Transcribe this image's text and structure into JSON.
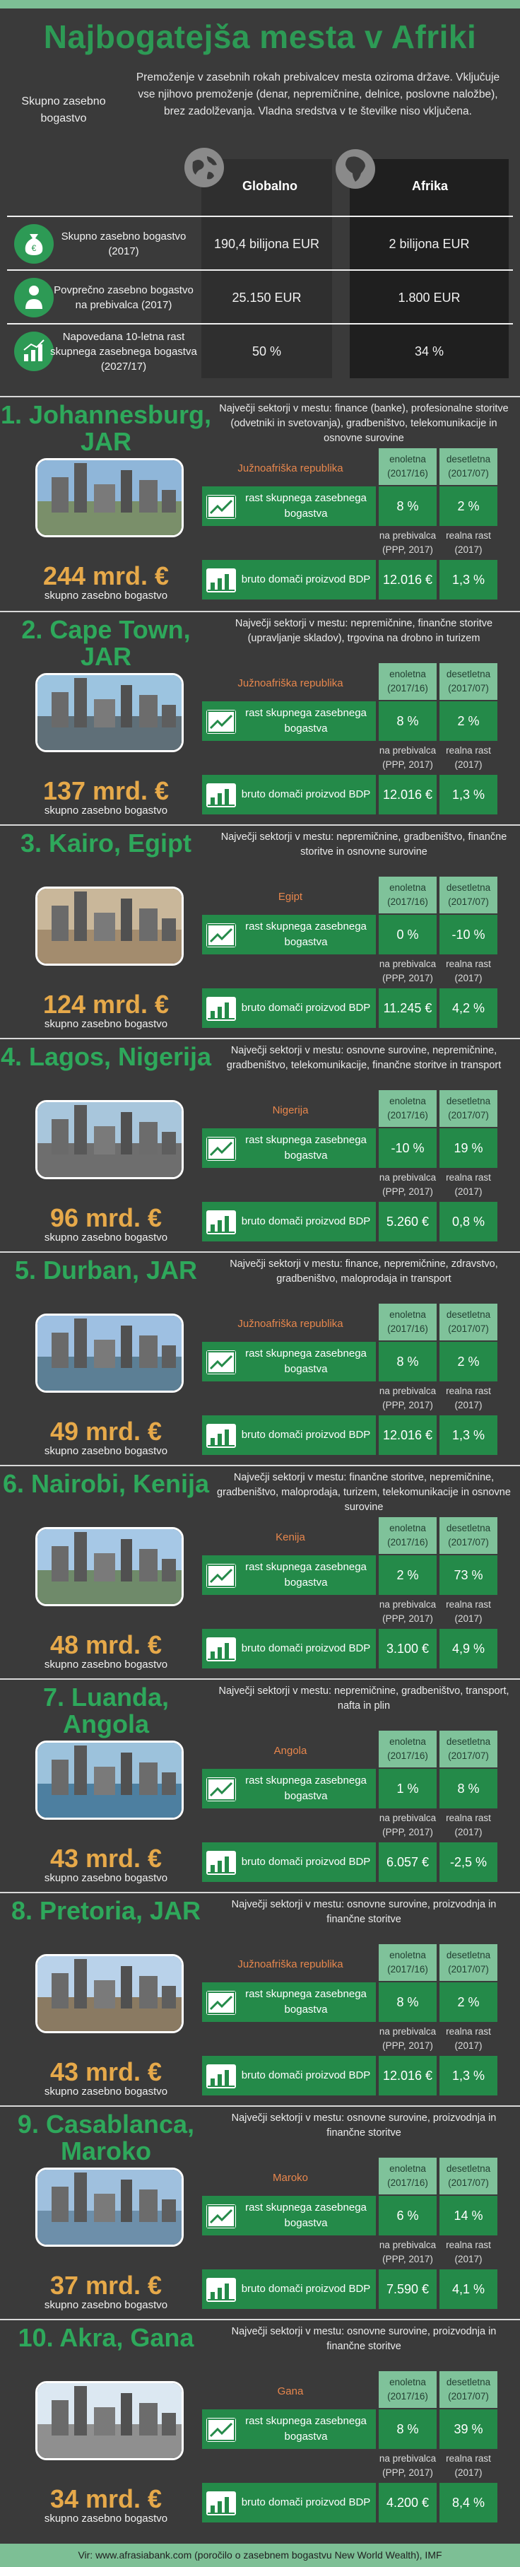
{
  "title": "Najbogatejša mesta v Afriki",
  "intro": {
    "left_label": "Skupno zasebno bogastvo",
    "text": "Premoženje v zasebnih rokah prebivalcev mesta oziroma države. Vključuje vse njihovo premoženje (denar, nepremičnine, delnice, poslovne naložbe), brez zadolževanja. Vladna sredstva v te številke niso vključena."
  },
  "summary": {
    "col_global": "Globalno",
    "col_africa": "Afrika",
    "rows": [
      {
        "label": "Skupno zasebno bogastvo (2017)",
        "global": "190,4 bilijona EUR",
        "africa": "2 bilijona EUR"
      },
      {
        "label": "Povprečno zasebno bogastvo na prebivalca (2017)",
        "global": "25.150 EUR",
        "africa": "1.800 EUR"
      },
      {
        "label": "Napovedana 10-letna rast skupnega zasebnega bogastva (2027/17)",
        "global": "50 %",
        "africa": "34 %"
      }
    ]
  },
  "labels": {
    "col_annual": "enoletna (2017/16)",
    "col_decade": "desetletna (2017/07)",
    "metric_growth": "rast skupnega zasebnega bogastva",
    "metric_gdp": "bruto domači proizvod BDP",
    "per_capita": "na prebivalca (PPP, 2017)",
    "real_growth": "realna rast (2017)",
    "wealth_sub": "skupno zasebno bogastvo"
  },
  "cities": [
    {
      "name": "1. Johannesburg, JAR",
      "sectors": "Največji sektorji v mestu: finance (banke), profesionalne storitve (odvetniki in svetovanja), gradbeništvo, telekomunikacije in osnovne surovine",
      "wealth": "244 mrd. €",
      "country": "Južnoafriška republika",
      "growth_annual": "8 %",
      "growth_decade": "2 %",
      "gdp_pc": "12.016 €",
      "gdp_growth": "1,3 %"
    },
    {
      "name": "2. Cape Town, JAR",
      "sectors": "Največji sektorji v mestu: nepremičnine, finančne storitve (upravljanje skladov), trgovina na drobno in turizem",
      "wealth": "137 mrd. €",
      "country": "Južnoafriška republika",
      "growth_annual": "8 %",
      "growth_decade": "2 %",
      "gdp_pc": "12.016 €",
      "gdp_growth": "1,3 %"
    },
    {
      "name": "3. Kairo, Egipt",
      "sectors": "Največji sektorji v mestu: nepremičnine, gradbeništvo, finančne storitve in osnovne surovine",
      "wealth": "124 mrd. €",
      "country": "Egipt",
      "growth_annual": "0 %",
      "growth_decade": "-10 %",
      "gdp_pc": "11.245 €",
      "gdp_growth": "4,2 %"
    },
    {
      "name": "4. Lagos, Nigerija",
      "sectors": "Največji sektorji v mestu: osnovne surovine, nepremičnine, gradbeništvo, telekomunikacije, finančne storitve in transport",
      "wealth": "96 mrd. €",
      "country": "Nigerija",
      "growth_annual": "-10 %",
      "growth_decade": "19 %",
      "gdp_pc": "5.260 €",
      "gdp_growth": "0,8 %"
    },
    {
      "name": "5. Durban, JAR",
      "sectors": "Največji sektorji v mestu: finance, nepremičnine, zdravstvo, gradbeništvo, maloprodaja in transport",
      "wealth": "49 mrd. €",
      "country": "Južnoafriška republika",
      "growth_annual": "8 %",
      "growth_decade": "2 %",
      "gdp_pc": "12.016 €",
      "gdp_growth": "1,3 %"
    },
    {
      "name": "6. Nairobi, Kenija",
      "sectors": "Največji sektorji v mestu: finančne storitve, nepremičnine, gradbeništvo, maloprodaja, turizem, telekomunikacije in osnovne surovine",
      "wealth": "48 mrd. €",
      "country": "Kenija",
      "growth_annual": "2 %",
      "growth_decade": "73 %",
      "gdp_pc": "3.100 €",
      "gdp_growth": "4,9 %"
    },
    {
      "name": "7. Luanda, Angola",
      "sectors": "Največji sektorji v mestu: nepremičnine, gradbeništvo, transport, nafta in plin",
      "wealth": "43 mrd. €",
      "country": "Angola",
      "growth_annual": "1 %",
      "growth_decade": "8 %",
      "gdp_pc": "6.057 €",
      "gdp_growth": "-2,5 %"
    },
    {
      "name": "8. Pretoria, JAR",
      "sectors": "Največji sektorji v mestu: osnovne surovine, proizvodnja in finančne storitve",
      "wealth": "43 mrd. €",
      "country": "Južnoafriška republika",
      "growth_annual": "8 %",
      "growth_decade": "2 %",
      "gdp_pc": "12.016 €",
      "gdp_growth": "1,3 %"
    },
    {
      "name": "9. Casablanca, Maroko",
      "sectors": "Največji sektorji v mestu: osnovne surovine, proizvodnja in finančne storitve",
      "wealth": "37 mrd. €",
      "country": "Maroko",
      "growth_annual": "6 %",
      "growth_decade": "14 %",
      "gdp_pc": "7.590 €",
      "gdp_growth": "4,1 %"
    },
    {
      "name": "10. Akra, Gana",
      "sectors": "Največji sektorji v mestu: osnovne surovine, proizvodnja in finančne storitve",
      "wealth": "34 mrd. €",
      "country": "Gana",
      "growth_annual": "8 %",
      "growth_decade": "39 %",
      "gdp_pc": "4.200 €",
      "gdp_growth": "8,4 %"
    }
  ],
  "colors": {
    "accent": "#2ea85b",
    "gold": "#e6a94a",
    "orange": "#e8874d",
    "mint": "#7dbf95"
  },
  "footer": "Vir: www.afrasiabank.com (poročilo o zasebnem bogastvu New World Wealth), IMF"
}
